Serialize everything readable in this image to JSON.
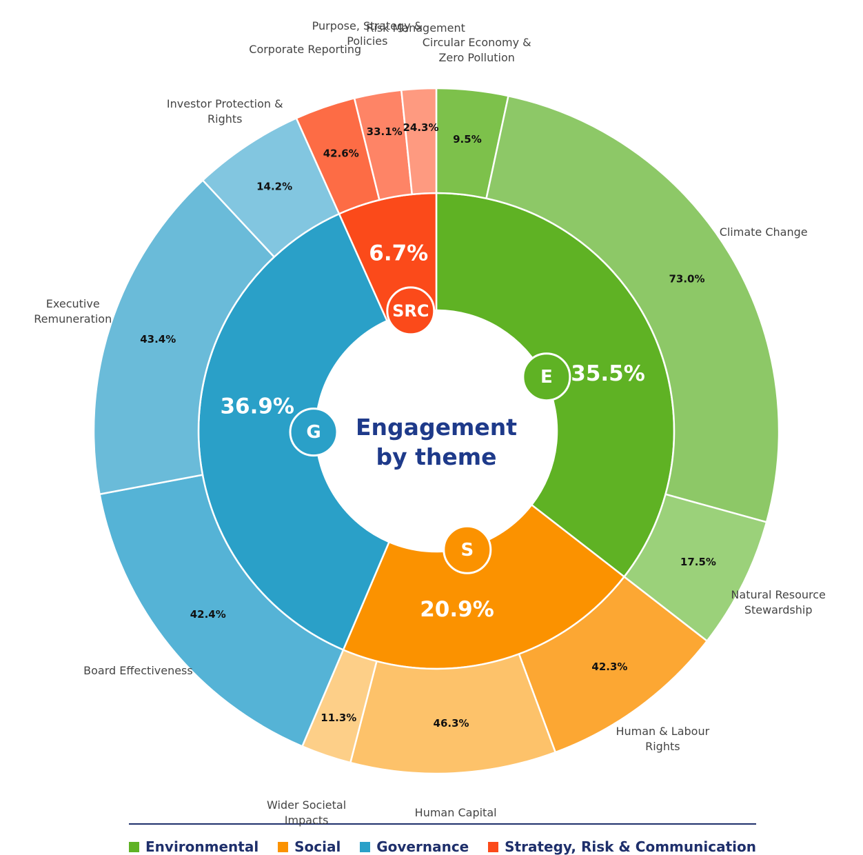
{
  "chart_data": {
    "type": "sunburst",
    "title": "Engagement by theme",
    "groups": [
      {
        "name": "Environmental",
        "short": "E",
        "value": 35.5,
        "value_label": "35.5%",
        "color": "#5fb224",
        "children": [
          {
            "name": "Circular Economy & Zero Pollution",
            "value": 9.5,
            "value_label": "9.5%",
            "color": "#7dc14b"
          },
          {
            "name": "Climate Change",
            "value": 73.0,
            "value_label": "73.0%",
            "color": "#8dc867"
          },
          {
            "name": "Natural Resource Stewardship",
            "value": 17.5,
            "value_label": "17.5%",
            "color": "#9bd17a"
          }
        ]
      },
      {
        "name": "Social",
        "short": "S",
        "value": 20.9,
        "value_label": "20.9%",
        "color": "#fb9200",
        "children": [
          {
            "name": "Human & Labour Rights",
            "value": 42.3,
            "value_label": "42.3%",
            "color": "#fca733"
          },
          {
            "name": "Human Capital",
            "value": 46.3,
            "value_label": "46.3%",
            "color": "#fdc26a"
          },
          {
            "name": "Wider Societal Impacts",
            "value": 11.3,
            "value_label": "11.3%",
            "color": "#fdcf88"
          }
        ]
      },
      {
        "name": "Governance",
        "short": "G",
        "value": 36.9,
        "value_label": "36.9%",
        "color": "#2aa0c8",
        "children": [
          {
            "name": "Board Effectiveness",
            "value": 42.4,
            "value_label": "42.4%",
            "color": "#55b3d6"
          },
          {
            "name": "Executive Remuneration",
            "value": 43.4,
            "value_label": "43.4%",
            "color": "#6abbd9"
          },
          {
            "name": "Investor Protection & Rights",
            "value": 14.2,
            "value_label": "14.2%",
            "color": "#82c6e0"
          }
        ]
      },
      {
        "name": "Strategy, Risk & Communication",
        "short": "SRC",
        "value": 6.7,
        "value_label": "6.7%",
        "color": "#fb4a1a",
        "children": [
          {
            "name": "Corporate Reporting",
            "value": 42.6,
            "value_label": "42.6%",
            "color": "#fd6c45"
          },
          {
            "name": "Purpose, Strategy & Policies",
            "value": 33.1,
            "value_label": "33.1%",
            "color": "#fe8466"
          },
          {
            "name": "Risk Management",
            "value": 24.3,
            "value_label": "24.3%",
            "color": "#fe9a80"
          }
        ]
      }
    ]
  }
}
